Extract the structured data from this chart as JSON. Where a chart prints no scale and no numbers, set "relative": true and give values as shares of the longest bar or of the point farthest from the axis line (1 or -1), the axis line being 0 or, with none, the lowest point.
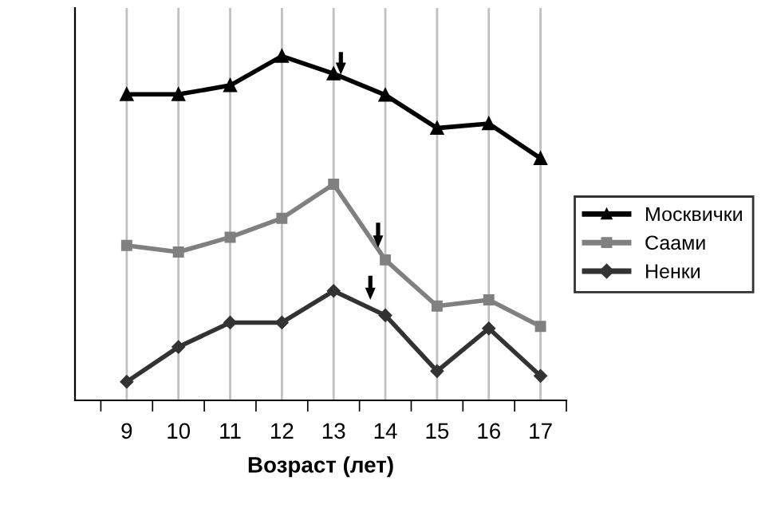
{
  "chart_data": {
    "type": "line",
    "relative": true,
    "xlabel": "Возраст (лет)",
    "categories": [
      "9",
      "10",
      "11",
      "12",
      "13",
      "14",
      "15",
      "16",
      "17"
    ],
    "series": [
      {
        "name": "Москвички",
        "color": "#000000",
        "marker": "triangle",
        "values": [
          0.889,
          0.889,
          0.915,
          1,
          0.949,
          0.887,
          0.791,
          0.804,
          0.703
        ]
      },
      {
        "name": "Саами",
        "color": "#808080",
        "marker": "square",
        "values": [
          0.45,
          0.431,
          0.474,
          0.529,
          0.628,
          0.408,
          0.274,
          0.292,
          0.215
        ]
      },
      {
        "name": "Ненки",
        "color": "#333333",
        "marker": "diamond",
        "values": [
          0.054,
          0.155,
          0.226,
          0.226,
          0.318,
          0.247,
          0.085,
          0.209,
          0.071
        ]
      }
    ],
    "grid": "x",
    "legend": "right",
    "line_style": "solid"
  }
}
